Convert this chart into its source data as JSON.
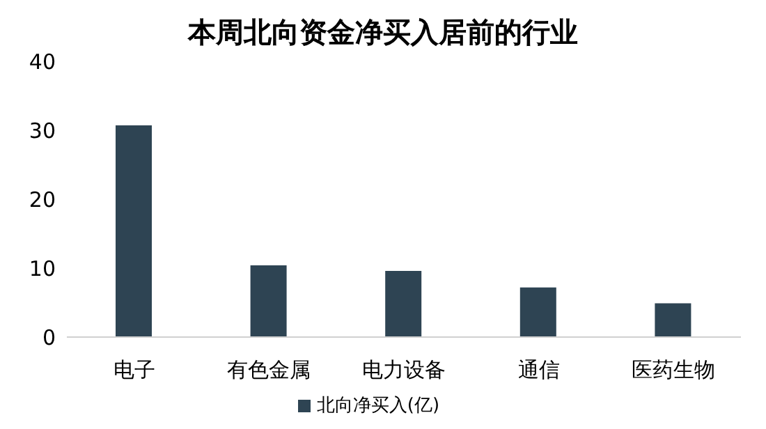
{
  "chart_data": {
    "type": "bar",
    "title": "本周北向资金净买入居前的行业",
    "categories": [
      "电子",
      "有色金属",
      "电力设备",
      "通信",
      "医药生物"
    ],
    "series": [
      {
        "name": "北向净买入(亿)",
        "color": "#2e4453",
        "values": [
          30.7,
          10.4,
          9.6,
          7.2,
          4.9
        ]
      }
    ],
    "ylim": [
      0,
      40
    ],
    "yticks": [
      0,
      10,
      20,
      30,
      40
    ],
    "grid": false,
    "legend": "bottom"
  }
}
